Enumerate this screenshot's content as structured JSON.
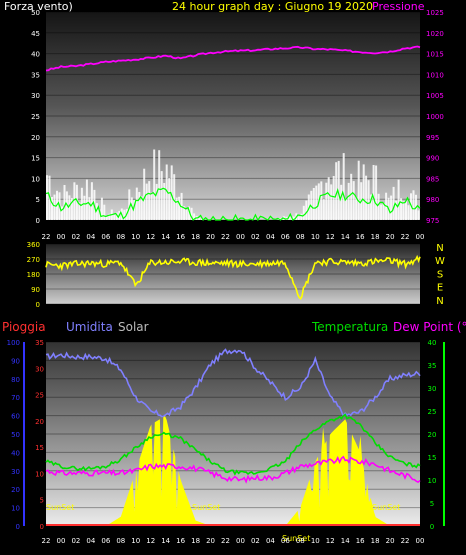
{
  "header": {
    "wind_label": "Forza vento)",
    "title": "24 hour graph day : Giugno 19 2020",
    "pressure_label": "Pressione"
  },
  "legend_bottom": {
    "rain": "Pioggia",
    "humidity": "Umidita",
    "solar": "Solar",
    "temperature": "Temperatura",
    "dewpoint": "Dew Point (°C)"
  },
  "colors": {
    "wind_axis": "#ffffff",
    "pressure": "#ff00ff",
    "gust": "#ffffff",
    "wind_avg": "#00ff00",
    "wind_dir": "#ffff00",
    "rain": "#ff3030",
    "humidity": "#8080ff",
    "solar": "#ffff00",
    "temperature": "#00dd00",
    "dewpoint": "#ff00ff",
    "axis_left_bottom": "#3333ff",
    "axis_right_bottom": "#00ff00",
    "sunset": "#ffff00"
  },
  "chart_data": [
    {
      "type": "line",
      "name": "wind_pressure",
      "title": "24 hour graph day : Giugno 19 2020",
      "x": [
        "22",
        "00",
        "02",
        "04",
        "06",
        "08",
        "10",
        "12",
        "14",
        "16",
        "18",
        "20",
        "22",
        "00",
        "02",
        "04",
        "06",
        "08",
        "10",
        "12",
        "14",
        "16",
        "18",
        "20",
        "22",
        "00"
      ],
      "x_ticks_shown": [
        "22",
        "02",
        "04",
        "06",
        "08",
        "10",
        "12",
        "14",
        "18",
        "22",
        "00",
        "02",
        "04",
        "06",
        "08",
        "10",
        "12",
        "14",
        "16",
        "18",
        "20",
        "22",
        "00"
      ],
      "ylabel": "Forza vento)",
      "y2label": "Pressione",
      "ylim": [
        0,
        50
      ],
      "yticks": [
        0,
        5,
        10,
        15,
        20,
        25,
        30,
        35,
        40,
        45,
        50
      ],
      "y2lim": [
        975,
        1025
      ],
      "y2ticks": [
        975,
        980,
        985,
        990,
        995,
        1000,
        1005,
        1010,
        1015,
        1020,
        1025
      ],
      "series": [
        {
          "name": "Pressione",
          "axis": "right",
          "values": [
            1011,
            1011.8,
            1012,
            1012.5,
            1013,
            1013.3,
            1013.6,
            1014,
            1014.5,
            1013.8,
            1014.6,
            1015.2,
            1015.5,
            1015.7,
            1015.8,
            1016.1,
            1016.3,
            1016.5,
            1016.1,
            1016,
            1015.7,
            1015.4,
            1015.2,
            1015.5,
            1016.3,
            1016.6
          ]
        },
        {
          "name": "Gust",
          "axis": "left",
          "values": [
            15,
            8,
            10,
            12,
            2,
            3,
            10,
            16,
            17,
            10,
            1,
            0,
            0,
            0,
            0,
            0,
            1,
            2,
            8,
            17,
            15,
            13,
            14,
            6,
            12,
            5
          ]
        },
        {
          "name": "Wind",
          "axis": "left",
          "values": [
            6,
            3,
            4,
            4,
            1,
            1,
            4,
            6,
            7,
            4,
            0,
            0,
            0,
            0,
            0,
            0,
            0,
            1,
            4,
            6,
            6,
            5,
            5,
            2,
            5,
            2
          ]
        }
      ]
    },
    {
      "type": "line",
      "name": "wind_direction",
      "x": [
        "22",
        "00",
        "02",
        "04",
        "06",
        "08",
        "10",
        "12",
        "14",
        "16",
        "18",
        "20",
        "22",
        "00",
        "02",
        "04",
        "06",
        "08",
        "10",
        "12",
        "14",
        "16",
        "18",
        "20",
        "22",
        "00"
      ],
      "ylim": [
        0,
        360
      ],
      "yticks": [
        0,
        90,
        180,
        270,
        360
      ],
      "y2ticks": [
        "N",
        "W",
        "S",
        "E",
        "N"
      ],
      "series": [
        {
          "name": "Direction",
          "values": [
            235,
            230,
            240,
            245,
            240,
            250,
            110,
            250,
            250,
            255,
            250,
            245,
            245,
            240,
            240,
            245,
            250,
            40,
            250,
            255,
            250,
            245,
            255,
            260,
            240,
            270
          ]
        }
      ]
    },
    {
      "type": "area",
      "name": "temp_humidity_solar",
      "x": [
        "22",
        "00",
        "02",
        "04",
        "06",
        "08",
        "10",
        "12",
        "14",
        "16",
        "18",
        "20",
        "22",
        "00",
        "02",
        "04",
        "06",
        "08",
        "10",
        "12",
        "14",
        "16",
        "18",
        "20",
        "22",
        "00"
      ],
      "ylim": [
        0,
        100
      ],
      "yticks": [
        0,
        10,
        20,
        30,
        40,
        50,
        60,
        70,
        80,
        90,
        100
      ],
      "rain_ticks": [
        0,
        5,
        10,
        15,
        20,
        25,
        30,
        35
      ],
      "y2lim": [
        0,
        40
      ],
      "y2ticks": [
        0,
        5,
        10,
        15,
        20,
        25,
        30,
        35,
        40
      ],
      "annotations": [
        "SunSet",
        "SunSet",
        "SunSet",
        "SunSet"
      ],
      "series": [
        {
          "name": "Umidita",
          "axis": "left",
          "values": [
            92,
            93,
            92,
            92,
            91,
            85,
            70,
            62,
            60,
            65,
            75,
            88,
            95,
            96,
            86,
            78,
            70,
            75,
            90,
            70,
            60,
            62,
            70,
            80,
            82,
            83
          ]
        },
        {
          "name": "Temperatura",
          "axis": "right",
          "values": [
            14,
            13,
            12.5,
            12.5,
            13,
            14.5,
            17,
            19.5,
            20,
            19,
            16.5,
            14,
            12,
            11.5,
            11.5,
            12.5,
            14,
            18,
            21,
            23,
            24,
            22,
            18,
            15,
            13.5,
            13
          ]
        },
        {
          "name": "Dew Point (°C)",
          "axis": "right",
          "values": [
            12,
            11.5,
            11.5,
            11.5,
            11.5,
            11.5,
            12,
            13,
            13,
            13,
            12.5,
            11.5,
            10.5,
            10,
            10.5,
            10.5,
            11.5,
            13,
            13.5,
            14,
            14.5,
            14,
            13.5,
            12,
            11,
            10
          ]
        },
        {
          "name": "Solar",
          "axis": "left",
          "values": [
            0,
            0,
            0,
            0,
            0,
            5,
            30,
            55,
            60,
            25,
            3,
            0,
            0,
            0,
            0,
            0,
            0,
            10,
            35,
            50,
            58,
            40,
            5,
            0,
            0,
            0
          ]
        },
        {
          "name": "Pioggia",
          "axis": "rain",
          "values": [
            0,
            0,
            0,
            0,
            0,
            0,
            0,
            0,
            0,
            0,
            0,
            0,
            0,
            0,
            0,
            0,
            0,
            0,
            0,
            0,
            0,
            0,
            0,
            0,
            0,
            0
          ]
        }
      ]
    }
  ]
}
